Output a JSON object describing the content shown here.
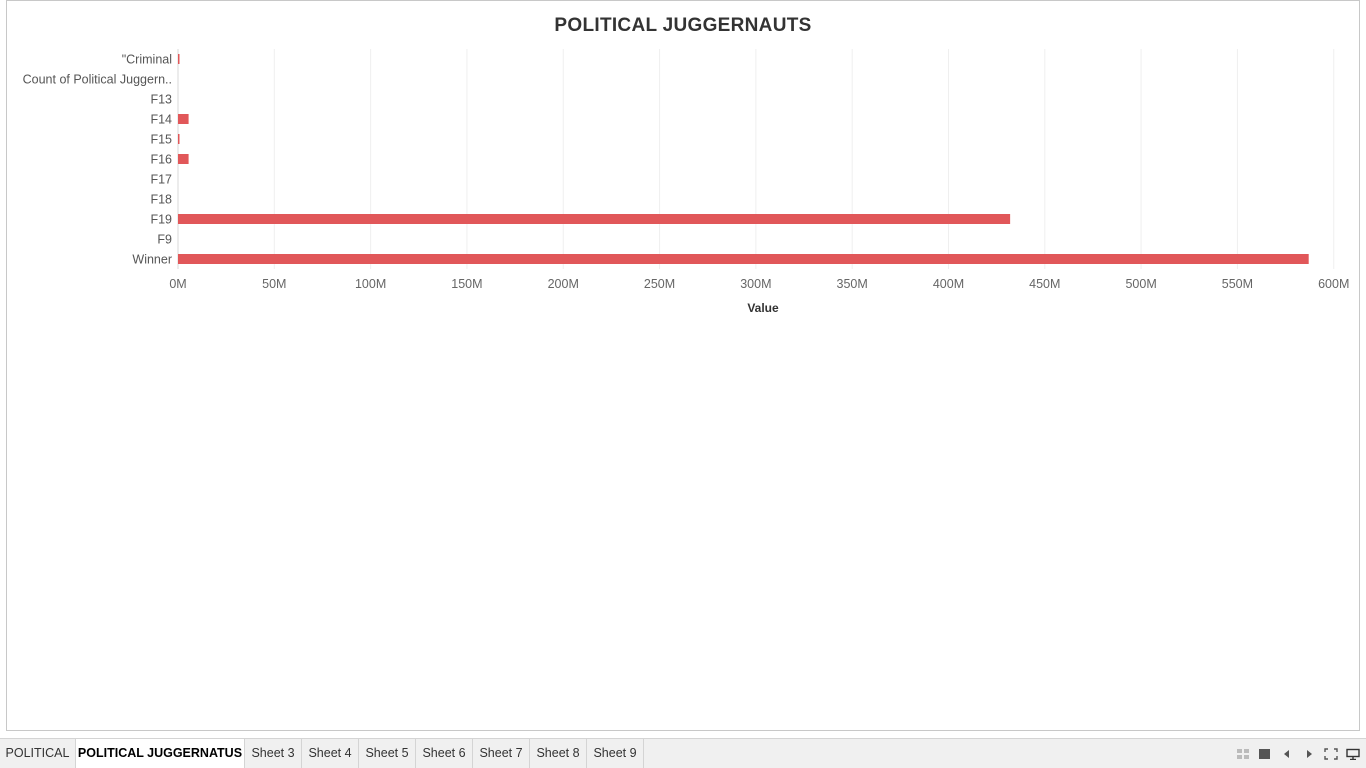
{
  "chart_data": {
    "type": "bar",
    "orientation": "horizontal",
    "title": "POLITICAL JUGGERNAUTS",
    "xlabel": "Value",
    "ylabel": "",
    "categories": [
      "\"Criminal",
      "Count of Political Juggern..",
      "F13",
      "F14",
      "F15",
      "F16",
      "F17",
      "F18",
      "F19",
      "F9",
      "Winner"
    ],
    "values": [
      400000,
      0,
      0,
      5500000,
      400000,
      5500000,
      0,
      0,
      432000000,
      0,
      587000000
    ],
    "xlim": [
      0,
      610000000
    ],
    "xticks": [
      0,
      50000000,
      100000000,
      150000000,
      200000000,
      250000000,
      300000000,
      350000000,
      400000000,
      450000000,
      500000000,
      550000000,
      600000000
    ],
    "xtick_labels": [
      "0M",
      "50M",
      "100M",
      "150M",
      "200M",
      "250M",
      "300M",
      "350M",
      "400M",
      "450M",
      "500M",
      "550M",
      "600M"
    ],
    "bar_color": "#e15759",
    "grid": "vertical",
    "legend": "none"
  },
  "tabs": [
    {
      "label": "POLITICAL",
      "active": false
    },
    {
      "label": "POLITICAL JUGGERNATUS",
      "active": true
    },
    {
      "label": "Sheet 3",
      "active": false
    },
    {
      "label": "Sheet 4",
      "active": false
    },
    {
      "label": "Sheet 5",
      "active": false
    },
    {
      "label": "Sheet 6",
      "active": false
    },
    {
      "label": "Sheet 7",
      "active": false
    },
    {
      "label": "Sheet 8",
      "active": false
    },
    {
      "label": "Sheet 9",
      "active": false
    }
  ],
  "controls": [
    {
      "icon": "sheet-sorter-icon"
    },
    {
      "icon": "filmstrip-icon"
    },
    {
      "icon": "previous-sheet-icon"
    },
    {
      "icon": "next-sheet-icon"
    },
    {
      "icon": "fullscreen-icon"
    },
    {
      "icon": "presentation-mode-icon"
    }
  ]
}
